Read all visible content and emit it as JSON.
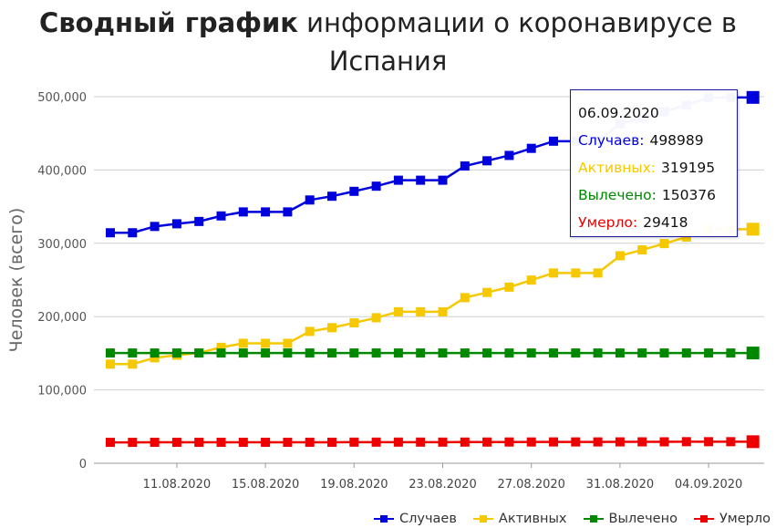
{
  "title": {
    "bold": "Сводный график",
    "rest": " информации о коронавирусе в Испания"
  },
  "chart_data": {
    "type": "line",
    "ylabel": "Человек (всего)",
    "ylim": [
      0,
      500000
    ],
    "yticks": [
      "0",
      "100,000",
      "200,000",
      "300,000",
      "400,000",
      "500,000"
    ],
    "xtick_labels": [
      "11.08.2020",
      "15.08.2020",
      "19.08.2020",
      "23.08.2020",
      "27.08.2020",
      "31.08.2020",
      "04.09.2020"
    ],
    "x": [
      "08.08.2020",
      "09.08.2020",
      "10.08.2020",
      "11.08.2020",
      "12.08.2020",
      "13.08.2020",
      "14.08.2020",
      "15.08.2020",
      "16.08.2020",
      "17.08.2020",
      "18.08.2020",
      "19.08.2020",
      "20.08.2020",
      "21.08.2020",
      "22.08.2020",
      "23.08.2020",
      "24.08.2020",
      "25.08.2020",
      "26.08.2020",
      "27.08.2020",
      "28.08.2020",
      "29.08.2020",
      "30.08.2020",
      "31.08.2020",
      "01.09.2020",
      "02.09.2020",
      "03.09.2020",
      "04.09.2020",
      "05.09.2020",
      "06.09.2020"
    ],
    "series": [
      {
        "name": "Случаев",
        "color": "#0000dd",
        "values": [
          314362,
          314362,
          322980,
          326612,
          329784,
          337334,
          342813,
          342813,
          342813,
          359082,
          364196,
          370867,
          377906,
          386054,
          386054,
          386054,
          405436,
          412553,
          419849,
          429507,
          439286,
          439286,
          439286,
          462858,
          470973,
          479554,
          488513,
          498989,
          498989,
          498989
        ]
      },
      {
        "name": "Активных",
        "color": "#f5c800",
        "values": [
          135200,
          135200,
          143800,
          147400,
          150600,
          158100,
          163600,
          163600,
          163600,
          179800,
          184900,
          191500,
          198500,
          206600,
          206600,
          206600,
          225900,
          233000,
          240200,
          249800,
          259500,
          259500,
          259500,
          283000,
          291000,
          299600,
          308500,
          319195,
          319195,
          319195
        ]
      },
      {
        "name": "Вылечено",
        "color": "#008800",
        "values": [
          150376,
          150376,
          150376,
          150376,
          150376,
          150376,
          150376,
          150376,
          150376,
          150376,
          150376,
          150376,
          150376,
          150376,
          150376,
          150376,
          150376,
          150376,
          150376,
          150376,
          150376,
          150376,
          150376,
          150376,
          150376,
          150376,
          150376,
          150376,
          150376,
          150376
        ]
      },
      {
        "name": "Умерло",
        "color": "#ee0000",
        "values": [
          28503,
          28503,
          28576,
          28579,
          28581,
          28605,
          28617,
          28617,
          28617,
          28646,
          28670,
          28797,
          28813,
          28838,
          28838,
          28838,
          28872,
          28924,
          28971,
          29011,
          29094,
          29094,
          29094,
          29152,
          29194,
          29234,
          29418,
          29418,
          29418,
          29418
        ]
      }
    ]
  },
  "tooltip": {
    "date": "06.09.2020",
    "rows": [
      {
        "label": "Случаев:",
        "value": "498989",
        "color": "#0000dd"
      },
      {
        "label": "Активных:",
        "value": "319195",
        "color": "#f5c800"
      },
      {
        "label": "Вылечено:",
        "value": "150376",
        "color": "#008800"
      },
      {
        "label": "Умерло:",
        "value": "29418",
        "color": "#ee0000"
      }
    ]
  }
}
